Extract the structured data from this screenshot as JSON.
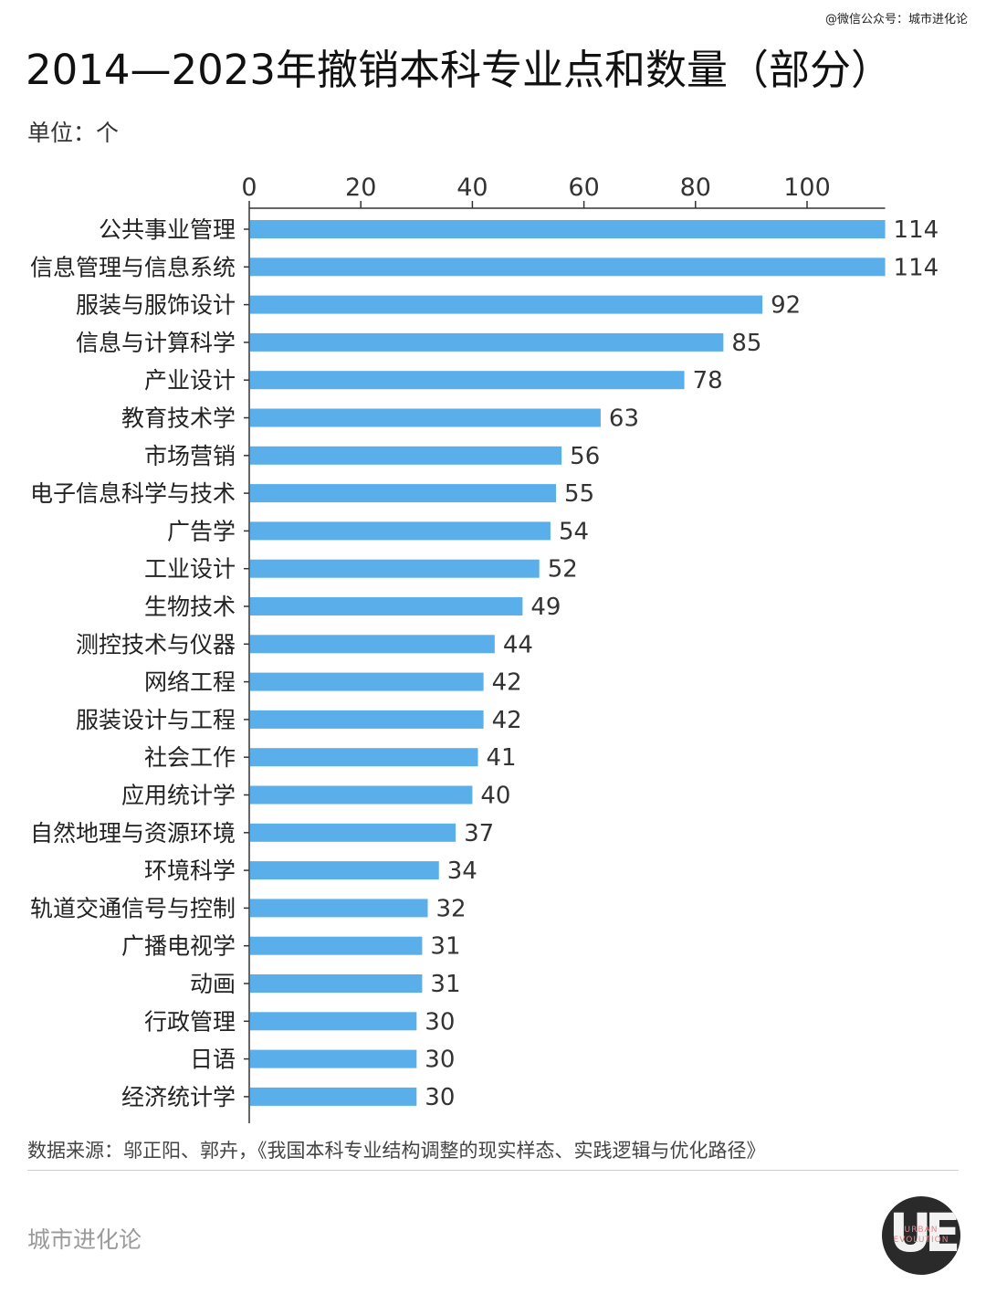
{
  "wechat_tag": "@微信公众号：城市进化论",
  "title": "2014—2023年撤销本科专业点和数量（部分）",
  "unit": "单位：个",
  "source": "数据来源：邬正阳、郭卉，《我国本科专业结构调整的现实样态、实践逻辑与优化路径》",
  "brand": "城市进化论",
  "logo": {
    "mark": "UE",
    "line1": "URBAN",
    "line2": "EVOLUTION"
  },
  "colors": {
    "bar": "#5aaeea",
    "axis": "#333333"
  },
  "chart_data": {
    "type": "bar",
    "orientation": "horizontal",
    "title": "2014—2023年撤销本科专业点和数量（部分）",
    "xlabel": "",
    "ylabel": "",
    "xlim": [
      0,
      114
    ],
    "ticks": [
      0,
      20,
      40,
      60,
      80,
      100
    ],
    "tick_labels": [
      "0",
      "20",
      "40",
      "60",
      "80",
      "100"
    ],
    "axis_position": "top",
    "grid": false,
    "categories": [
      "公共事业管理",
      "信息管理与信息系统",
      "服装与服饰设计",
      "信息与计算科学",
      "产业设计",
      "教育技术学",
      "市场营销",
      "电子信息科学与技术",
      "广告学",
      "工业设计",
      "生物技术",
      "测控技术与仪器",
      "网络工程",
      "服装设计与工程",
      "社会工作",
      "应用统计学",
      "自然地理与资源环境",
      "环境科学",
      "轨道交通信号与控制",
      "广播电视学",
      "动画",
      "行政管理",
      "日语",
      "经济统计学"
    ],
    "values": [
      114,
      114,
      92,
      85,
      78,
      63,
      56,
      55,
      54,
      52,
      49,
      44,
      42,
      42,
      41,
      40,
      37,
      34,
      32,
      31,
      31,
      30,
      30,
      30
    ]
  }
}
